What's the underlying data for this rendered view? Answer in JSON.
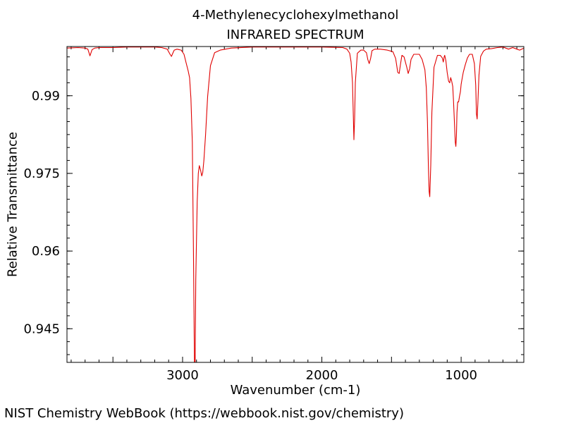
{
  "chart_data": {
    "type": "line",
    "title": "4-Methylenecyclohexylmethanol",
    "subtitle": "INFRARED SPECTRUM",
    "xlabel": "Wavenumber (cm-1)",
    "ylabel": "Relative Transmittance",
    "xlim": [
      3830,
      550
    ],
    "ylim": [
      0.9385,
      0.9995
    ],
    "x_ticks": [
      3000,
      2000,
      1000
    ],
    "x_tick_labels": [
      "3000",
      "2000",
      "1000"
    ],
    "y_ticks": [
      0.99,
      0.975,
      0.96,
      0.945
    ],
    "y_tick_labels": [
      "0.99",
      "0.975",
      "0.96",
      "0.945"
    ],
    "grid": false,
    "line_color": "#e00000",
    "series": [
      {
        "x": [
          3830,
          3750,
          3700,
          3680,
          3665,
          3650,
          3630,
          3600,
          3500,
          3400,
          3300,
          3200,
          3150,
          3110,
          3090,
          3080,
          3070,
          3060,
          3040,
          3010,
          2990,
          2975,
          2960,
          2950,
          2940,
          2930,
          2922,
          2915,
          2910,
          2905,
          2895,
          2887,
          2880,
          2870,
          2862,
          2855,
          2847,
          2835,
          2820,
          2800,
          2770,
          2730,
          2650,
          2500,
          2200,
          2000,
          1850,
          1820,
          1800,
          1790,
          1780,
          1775,
          1770,
          1765,
          1760,
          1745,
          1720,
          1700,
          1680,
          1670,
          1660,
          1650,
          1640,
          1620,
          1580,
          1530,
          1490,
          1470,
          1455,
          1445,
          1435,
          1425,
          1410,
          1390,
          1380,
          1370,
          1360,
          1340,
          1300,
          1280,
          1260,
          1250,
          1242,
          1235,
          1230,
          1225,
          1218,
          1210,
          1195,
          1170,
          1150,
          1135,
          1128,
          1122,
          1118,
          1110,
          1100,
          1090,
          1082,
          1075,
          1068,
          1060,
          1055,
          1048,
          1042,
          1038,
          1034,
          1030,
          1025,
          1018,
          1012,
          1005,
          1000,
          995,
          985,
          970,
          955,
          940,
          920,
          905,
          895,
          890,
          885,
          880,
          872,
          860,
          840,
          820,
          780,
          740,
          700,
          680,
          660,
          630,
          600,
          580,
          550
        ],
        "y": [
          0.9992,
          0.9993,
          0.9992,
          0.999,
          0.9977,
          0.9989,
          0.9992,
          0.9993,
          0.9993,
          0.9994,
          0.9994,
          0.9994,
          0.9993,
          0.999,
          0.998,
          0.9976,
          0.9982,
          0.9988,
          0.999,
          0.9988,
          0.998,
          0.9964,
          0.9948,
          0.9935,
          0.9895,
          0.981,
          0.96,
          0.938,
          0.9385,
          0.9545,
          0.9695,
          0.975,
          0.9765,
          0.9755,
          0.9745,
          0.9752,
          0.9775,
          0.9825,
          0.9898,
          0.9958,
          0.9983,
          0.9988,
          0.9992,
          0.9994,
          0.9994,
          0.9994,
          0.9993,
          0.999,
          0.9982,
          0.9965,
          0.9925,
          0.987,
          0.9815,
          0.9855,
          0.9925,
          0.9982,
          0.9988,
          0.9988,
          0.9983,
          0.997,
          0.9962,
          0.9972,
          0.9987,
          0.999,
          0.999,
          0.9988,
          0.9985,
          0.9972,
          0.9945,
          0.9943,
          0.9962,
          0.9978,
          0.9975,
          0.9955,
          0.9943,
          0.9952,
          0.997,
          0.998,
          0.998,
          0.997,
          0.995,
          0.9915,
          0.985,
          0.976,
          0.9715,
          0.9705,
          0.9765,
          0.9868,
          0.9955,
          0.9978,
          0.9978,
          0.9973,
          0.9965,
          0.9975,
          0.9978,
          0.9968,
          0.9945,
          0.9928,
          0.9925,
          0.9935,
          0.9928,
          0.9918,
          0.9892,
          0.9848,
          0.981,
          0.9802,
          0.9822,
          0.9868,
          0.9888,
          0.9888,
          0.9898,
          0.9908,
          0.9922,
          0.993,
          0.9945,
          0.996,
          0.9973,
          0.998,
          0.998,
          0.9962,
          0.992,
          0.9865,
          0.9855,
          0.9885,
          0.994,
          0.9976,
          0.9986,
          0.999,
          0.9991,
          0.9993,
          0.9994,
          0.9992,
          0.999,
          0.9993,
          0.999,
          0.9988,
          0.9992
        ]
      }
    ]
  },
  "footer": {
    "credit": "NIST Chemistry WebBook (https://webbook.nist.gov/chemistry)"
  }
}
